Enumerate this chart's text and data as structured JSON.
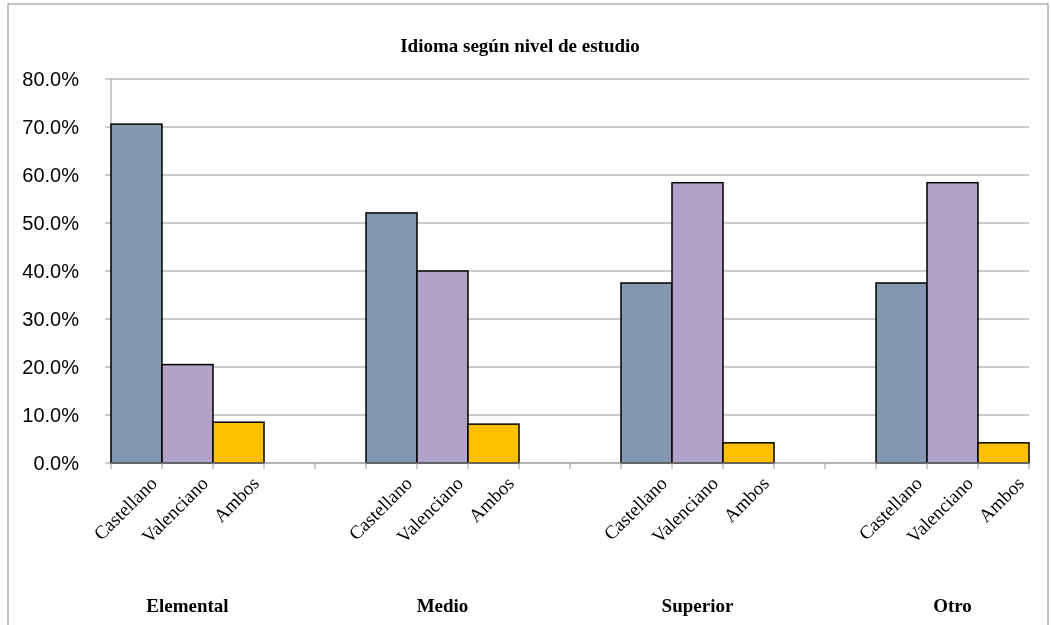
{
  "chart_data": {
    "type": "bar",
    "title": "Idioma según nivel de estudio",
    "categories": [
      "Elemental",
      "Medio",
      "Superior",
      "Otro"
    ],
    "series": [
      {
        "name": "Castellano",
        "color": "#8497b0",
        "values": [
          70.6,
          52.1,
          37.5,
          37.5
        ]
      },
      {
        "name": "Valenciano",
        "color": "#b3a2c7",
        "values": [
          20.5,
          40.0,
          58.4,
          58.4
        ]
      },
      {
        "name": "Ambos",
        "color": "#ffc000",
        "values": [
          8.5,
          8.1,
          4.2,
          4.2
        ]
      }
    ],
    "ylim": [
      0,
      80
    ],
    "yticks": [
      {
        "value": 0,
        "label": "0.0%"
      },
      {
        "value": 10,
        "label": "10.0%"
      },
      {
        "value": 20,
        "label": "20.0%"
      },
      {
        "value": 30,
        "label": "30.0%"
      },
      {
        "value": 40,
        "label": "40.0%"
      },
      {
        "value": 50,
        "label": "50.0%"
      },
      {
        "value": 60,
        "label": "60.0%"
      },
      {
        "value": 70,
        "label": "70.0%"
      },
      {
        "value": 80,
        "label": "80.0%"
      }
    ],
    "grid": "y"
  }
}
